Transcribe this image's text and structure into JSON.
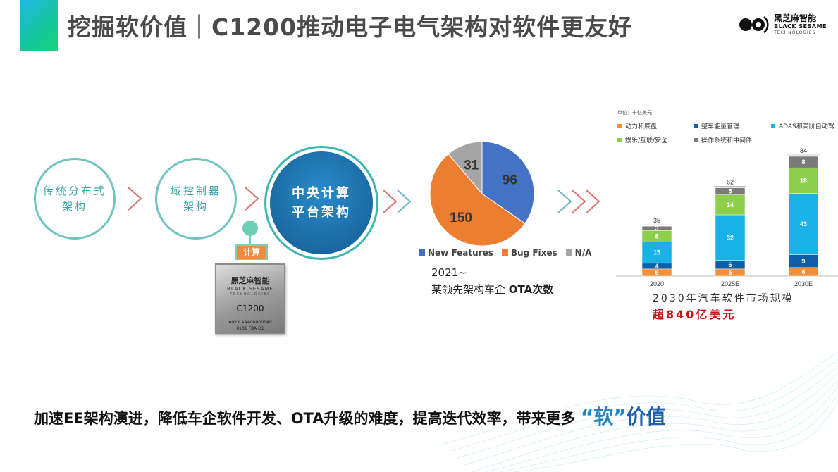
{
  "header": {
    "title": "挖掘软价值｜C1200推动电子电气架构对软件更友好",
    "logo_cn": "黑芝麻智能",
    "logo_en": "BLACK SESAME",
    "logo_en2": "TECHNOLOGIES"
  },
  "flow": {
    "stage1": [
      "传统分布式",
      "架构"
    ],
    "stage2": [
      "域控制器",
      "架构"
    ],
    "stage3": [
      "中央计算",
      "平台架构"
    ],
    "calc_label": "计算"
  },
  "chip": {
    "brand_cn": "黑芝麻智能",
    "brand_en": "BLACK SESAME",
    "brand_en2": "TECHNOLOGIES",
    "model": "C1200",
    "line1": "A0XX  AAA000001A0",
    "line2": "0101  FBA  Q1"
  },
  "ota": {
    "caption_year": "2021~",
    "caption_text": "某领先架构车企 ",
    "caption_bold": "OTA次数"
  },
  "market": {
    "line1": "2030年汽车软件市场规模",
    "line2": "超840亿美元"
  },
  "bottom": {
    "text": "加速EE架构演进，降低车企软件开发、OTA升级的难度，提高迭代效率，带来更多",
    "quote_open": "“",
    "quote_word": "软",
    "quote_close": "”",
    "value_word": "价值"
  },
  "colors": {
    "accent": "#1fb6e8",
    "teal": "#3bb7b0",
    "pie_new": "#4472c4",
    "pie_bug": "#ed7d31",
    "pie_na": "#a5a5a5"
  },
  "chart_data": [
    {
      "type": "pie",
      "labels": [
        "New Features",
        "Bug Fixes",
        "N/A"
      ],
      "values": [
        96,
        150,
        31
      ],
      "colors": [
        "#4472c4",
        "#ed7d31",
        "#a5a5a5"
      ],
      "legend_position": "bottom"
    },
    {
      "type": "bar",
      "stacked": true,
      "unit_label": "单位：十亿美元",
      "categories": [
        "2020",
        "2025E",
        "2030E"
      ],
      "totals": [
        35,
        62,
        84
      ],
      "series": [
        {
          "name": "动力和底盘",
          "color": "#f28f3b",
          "values": [
            5,
            5,
            6
          ]
        },
        {
          "name": "整车能量管理",
          "color": "#0f5fa8",
          "values": [
            4,
            6,
            9
          ]
        },
        {
          "name": "ADAS和高阶自动驾",
          "color": "#1ab2e6",
          "values": [
            15,
            32,
            43
          ]
        },
        {
          "name": "娱乐/互联/安全",
          "color": "#8dcf4a",
          "values": [
            8,
            14,
            18
          ]
        },
        {
          "name": "操作系统和中间件",
          "color": "#7b7b7b",
          "values": [
            3,
            5,
            8
          ]
        }
      ],
      "ylim": [
        0,
        84
      ]
    }
  ]
}
